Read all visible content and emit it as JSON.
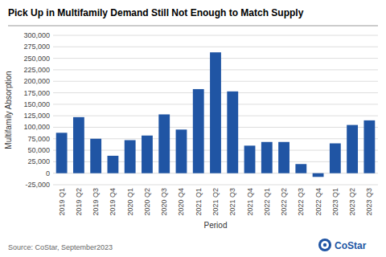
{
  "chart_data": {
    "type": "bar",
    "title": "Pick Up in Multifamily Demand Still Not Enough to Match Supply",
    "x_label": "Period",
    "y_label": "Multifamily Absorption",
    "annotations": [
      "Source: CoStar, September2023",
      "CoStar"
    ],
    "color": "#2055a4",
    "categories": [
      "2019 Q1",
      "2019 Q2",
      "2019 Q3",
      "2019 Q4",
      "2020 Q1",
      "2020 Q2",
      "2020 Q3",
      "2020 Q4",
      "2021 Q1",
      "2021 Q2",
      "2021 Q3",
      "2021 Q4",
      "2022 Q1",
      "2022 Q2",
      "2022 Q3",
      "2022 Q4",
      "2023 Q1",
      "2023 Q2",
      "2023 Q3"
    ],
    "values": [
      88000,
      122000,
      75000,
      38000,
      72000,
      82000,
      128000,
      95000,
      183000,
      263000,
      178000,
      60000,
      68000,
      68000,
      20000,
      -8000,
      65000,
      105000,
      115000
    ],
    "ylim": [
      -25000,
      300000
    ],
    "yticks": [
      {
        "value": -25000,
        "label": "-25,000"
      },
      0,
      {
        "value": 25000,
        "label": "25,000"
      },
      {
        "value": 50000,
        "label": "50,000"
      },
      {
        "value": 75000,
        "label": "75,000"
      },
      {
        "value": 100000,
        "label": "100,000"
      },
      {
        "value": 125000,
        "label": "125,000"
      },
      {
        "value": 150000,
        "label": "150,000"
      },
      {
        "value": 175000,
        "label": "175,000"
      },
      {
        "value": 200000,
        "label": "200,000"
      },
      {
        "value": 225000,
        "label": "225,000"
      },
      {
        "value": 250000,
        "label": "250,000"
      },
      {
        "value": 275000,
        "label": "275,000"
      },
      {
        "value": 300000,
        "label": "300,000"
      }
    ],
    "grid": true
  }
}
